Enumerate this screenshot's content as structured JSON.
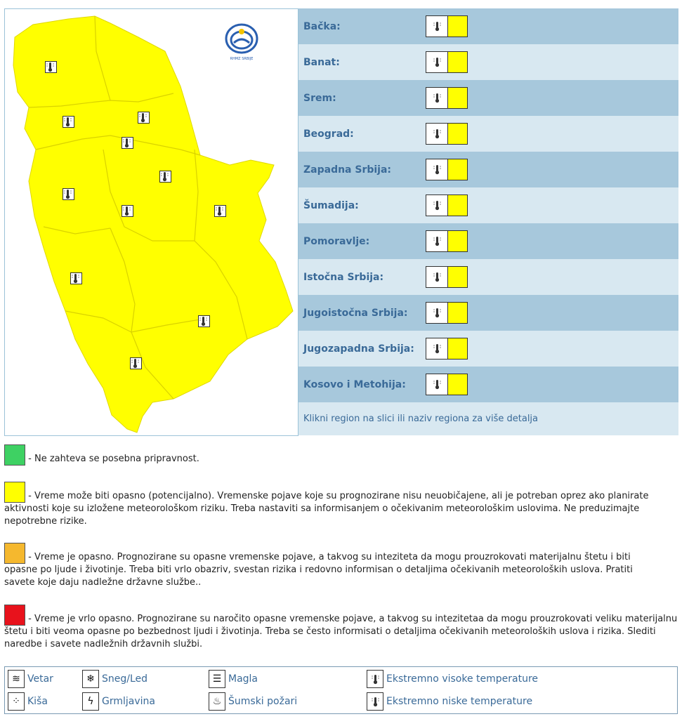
{
  "colors": {
    "green": "#3ed163",
    "yellow": "#ffff00",
    "orange": "#f5b82e",
    "red": "#e8121c",
    "row_dark": "#a7c8dc",
    "row_light": "#d8e8f1"
  },
  "map": {
    "alert_color": "#ffff00",
    "icon": "thermometer-hot-icon"
  },
  "regions": [
    {
      "label": "Bačka:",
      "level": "yellow"
    },
    {
      "label": "Banat:",
      "level": "yellow"
    },
    {
      "label": "Srem:",
      "level": "yellow"
    },
    {
      "label": "Beograd:",
      "level": "yellow"
    },
    {
      "label": "Zapadna Srbija:",
      "level": "yellow"
    },
    {
      "label": "Šumadija:",
      "level": "yellow"
    },
    {
      "label": "Pomoravlje:",
      "level": "yellow"
    },
    {
      "label": "Istočna Srbija:",
      "level": "yellow"
    },
    {
      "label": "Jugoistočna Srbija:",
      "level": "yellow"
    },
    {
      "label": "Jugozapadna Srbija:",
      "level": "yellow"
    },
    {
      "label": "Kosovo i Metohija:",
      "level": "yellow"
    }
  ],
  "hint": "Klikni region na slici ili naziv regiona za više detalja",
  "legend": {
    "green": "- Ne zahteva se posebna pripravnost.",
    "yellow": "- Vreme može biti opasno (potencijalno). Vremenske pojave koje su prognozirane nisu neuobičajene, ali je potreban oprez ako planirate aktivnosti koje su izložene meteorološkom riziku. Treba nastaviti sa informisanjem o očekivanim meteorološkim uslovima. Ne preduzimajte nepotrebne rizike.",
    "orange": "- Vreme je opasno. Prognozirane su opasne vremenske pojave, a takvog su inteziteta da mogu prouzrokovati materijalnu štetu i biti opasne po ljude i životinje. Treba biti vrlo obazriv, svestan rizika i redovno informisan o detaljima očekivanih meteoroloških uslova. Pratiti savete koje daju nadležne državne službe..",
    "red": "- Vreme je vrlo opasno. Prognozirane su naročito opasne vremenske pojave, a takvog su intezitetaa da mogu prouzrokovati veliku materijalnu štetu i biti veoma opasne po bezbednost ljudi i životinja. Treba se često informisati o detaljima očekivanih meteoroloških uslova i rizika. Slediti naredbe i savete nadležnih državnih službi."
  },
  "icons": [
    {
      "label": "Vetar",
      "icon": "wind-icon",
      "glyph": "≋"
    },
    {
      "label": "Sneg/Led",
      "icon": "snowflake-icon",
      "glyph": "❄"
    },
    {
      "label": "Magla",
      "icon": "fog-icon",
      "glyph": "☰"
    },
    {
      "label": "Ekstremno visoke temperature",
      "icon": "thermometer-hot-icon",
      "glyph": "🌡"
    },
    {
      "label": "Kiša",
      "icon": "rain-icon",
      "glyph": "⁘"
    },
    {
      "label": "Grmljavina",
      "icon": "lightning-icon",
      "glyph": "ϟ"
    },
    {
      "label": "Šumski požari",
      "icon": "forest-fire-icon",
      "glyph": "♨"
    },
    {
      "label": "Ekstremno niske temperature",
      "icon": "thermometer-cold-icon",
      "glyph": "🌡"
    }
  ]
}
